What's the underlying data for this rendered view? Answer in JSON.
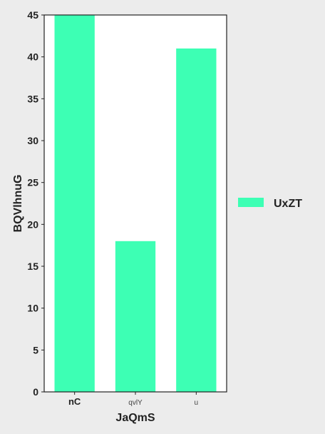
{
  "chart_data": {
    "type": "bar",
    "categories": [
      "nC",
      "qvlY",
      "u"
    ],
    "series": [
      {
        "name": "UxZT",
        "values": [
          45,
          18,
          41
        ],
        "color": "#3dffb4"
      }
    ],
    "xlabel": "JaQmS",
    "ylabel": "BQVlhnuG",
    "ylim": [
      0,
      45
    ],
    "yticks": [
      0,
      5,
      10,
      15,
      20,
      25,
      30,
      35,
      40,
      45
    ],
    "grid": false,
    "legend_position": "right"
  }
}
